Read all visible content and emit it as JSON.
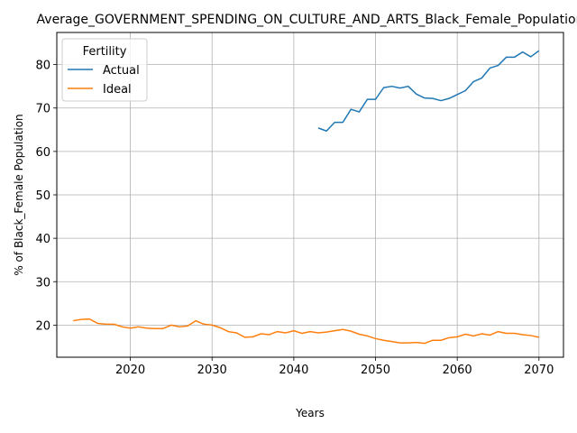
{
  "chart_data": {
    "type": "line",
    "title": "Average_GOVERNMENT_SPENDING_ON_CULTURE_AND_ARTS_Black_Female_Population",
    "xlabel": "Years",
    "ylabel": "% of Black_Female Population",
    "xlim": [
      2011,
      2073
    ],
    "ylim": [
      12.6,
      87.4
    ],
    "xticks": [
      2020,
      2030,
      2040,
      2050,
      2060,
      2070
    ],
    "yticks": [
      20,
      30,
      40,
      50,
      60,
      70,
      80
    ],
    "grid": true,
    "legend": {
      "title": "Fertility",
      "placement": "top-left"
    },
    "series": [
      {
        "name": "Actual",
        "color": "#1f77b4",
        "x": [
          2043,
          2044,
          2045,
          2046,
          2047,
          2048,
          2049,
          2050,
          2051,
          2052,
          2053,
          2054,
          2055,
          2056,
          2057,
          2058,
          2059,
          2060,
          2061,
          2062,
          2063,
          2064,
          2065,
          2066,
          2067,
          2068,
          2069,
          2070
        ],
        "y": [
          65.4,
          64.7,
          66.7,
          66.7,
          69.7,
          69.1,
          72.0,
          72.0,
          74.7,
          75.0,
          74.6,
          75.0,
          73.2,
          72.3,
          72.2,
          71.7,
          72.2,
          73.1,
          74.0,
          76.1,
          76.9,
          79.2,
          79.8,
          81.7,
          81.7,
          82.9,
          81.8,
          83.2
        ]
      },
      {
        "name": "Ideal",
        "color": "#ff7f0e",
        "x": [
          2013,
          2014,
          2015,
          2016,
          2017,
          2018,
          2019,
          2020,
          2021,
          2022,
          2023,
          2024,
          2025,
          2026,
          2027,
          2028,
          2029,
          2030,
          2031,
          2032,
          2033,
          2034,
          2035,
          2036,
          2037,
          2038,
          2039,
          2040,
          2041,
          2042,
          2043,
          2044,
          2045,
          2046,
          2047,
          2048,
          2049,
          2050,
          2051,
          2052,
          2053,
          2054,
          2055,
          2056,
          2057,
          2058,
          2059,
          2060,
          2061,
          2062,
          2063,
          2064,
          2065,
          2066,
          2067,
          2068,
          2069,
          2070
        ],
        "y": [
          21.0,
          21.3,
          21.4,
          20.4,
          20.2,
          20.2,
          19.6,
          19.3,
          19.6,
          19.3,
          19.2,
          19.2,
          20.0,
          19.6,
          19.8,
          21.0,
          20.2,
          20.0,
          19.4,
          18.5,
          18.2,
          17.2,
          17.3,
          18.0,
          17.8,
          18.5,
          18.2,
          18.7,
          18.1,
          18.5,
          18.2,
          18.4,
          18.7,
          19.0,
          18.6,
          17.9,
          17.5,
          16.9,
          16.5,
          16.2,
          15.9,
          15.9,
          16.0,
          15.8,
          16.5,
          16.5,
          17.1,
          17.3,
          17.9,
          17.5,
          18.0,
          17.7,
          18.5,
          18.1,
          18.1,
          17.8,
          17.6,
          17.2
        ]
      }
    ]
  }
}
